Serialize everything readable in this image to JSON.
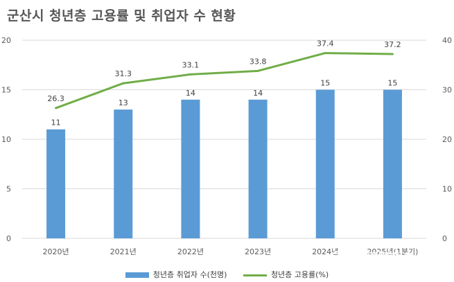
{
  "chart_data": {
    "type": "bar",
    "title": "군산시 청년층 고용률 및 취업자 수 현황",
    "categories": [
      "2020년",
      "2021년",
      "2022년",
      "2023년",
      "2024년",
      "2025년(1분기)"
    ],
    "series": [
      {
        "name": "청년층 취업자 수(천명)",
        "type": "bar",
        "axis": "left",
        "color": "#5B9BD5",
        "values": [
          11,
          13,
          14,
          14,
          15,
          15
        ]
      },
      {
        "name": "청년층 고용률(%)",
        "type": "line",
        "axis": "right",
        "color": "#70AD47",
        "values": [
          26.3,
          31.3,
          33.1,
          33.8,
          37.4,
          37.2
        ]
      }
    ],
    "y_left": {
      "min": 0,
      "max": 20,
      "ticks": [
        0,
        5,
        10,
        15,
        20
      ]
    },
    "y_right": {
      "min": 0,
      "max": 40,
      "ticks": [
        0,
        10,
        20,
        30,
        40
      ]
    },
    "grid": true,
    "legend_position": "bottom"
  },
  "watermark": {
    "text": "한국현대미술신문",
    "subtext": "Korea Contemporary Art Newspaper"
  }
}
